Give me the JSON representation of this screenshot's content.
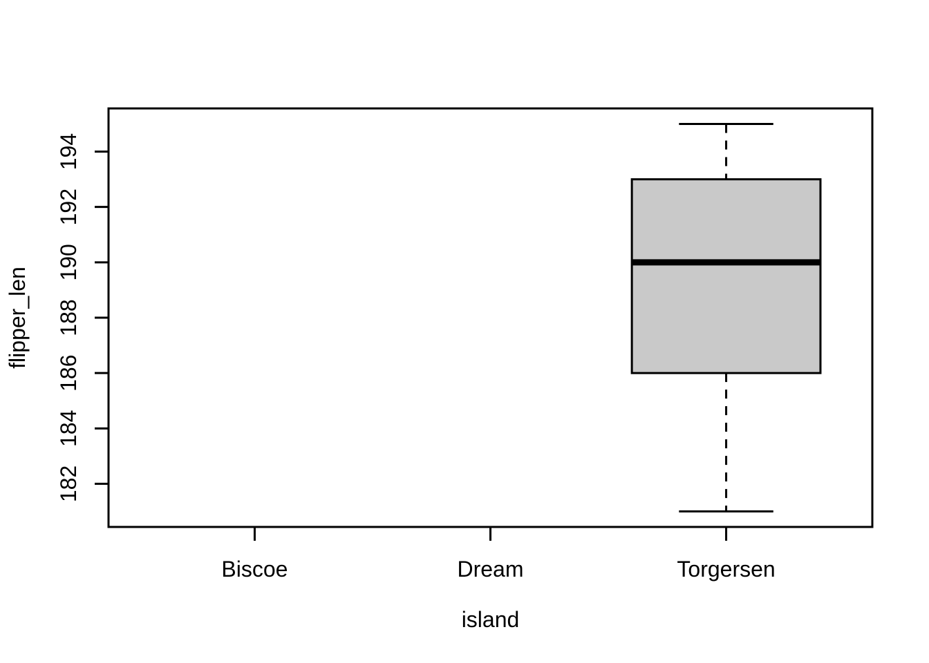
{
  "chart_data": {
    "type": "boxplot",
    "title": "",
    "xlabel": "island",
    "ylabel": "flipper_len",
    "categories": [
      "Biscoe",
      "Dream",
      "Torgersen"
    ],
    "series": [
      {
        "name": "Biscoe",
        "stats": null
      },
      {
        "name": "Dream",
        "stats": null
      },
      {
        "name": "Torgersen",
        "stats": {
          "whisker_low": 181,
          "q1": 186,
          "median": 190,
          "q3": 193,
          "whisker_high": 195
        }
      }
    ],
    "x_positions": [
      1,
      2,
      3
    ],
    "y_ticks": [
      182,
      184,
      186,
      188,
      190,
      192,
      194
    ],
    "ylim": [
      180.44,
      195.56
    ],
    "xlim": [
      0.38,
      3.62
    ],
    "box_width": 0.8,
    "cap_width": 0.4,
    "grid": false,
    "legend": false,
    "colors": {
      "box_fill": "#c9c9c9",
      "line": "#000000",
      "background": "#ffffff"
    }
  }
}
